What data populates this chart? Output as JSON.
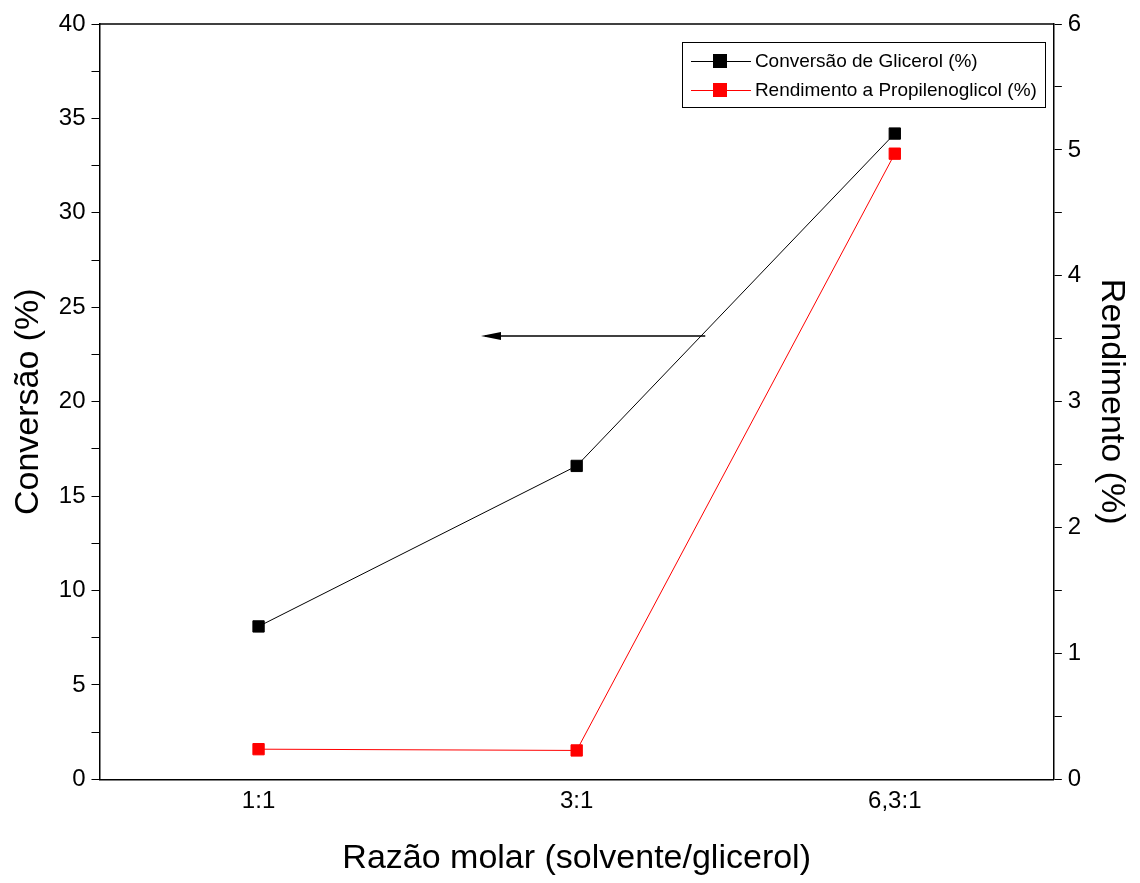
{
  "chart_data": {
    "type": "line",
    "xlabel": "Razão molar (solvente/glicerol)",
    "ylabel": "Conversão (%)",
    "y2label": "Rendimento (%)",
    "categories": [
      "1:1",
      "3:1",
      "6,3:1"
    ],
    "series": [
      {
        "name": "Conversão de Glicerol (%)",
        "color": "#000000",
        "values": [
          8.1,
          16.6,
          34.2
        ]
      },
      {
        "name": "Rendimento a Propilenoglicol (%)",
        "color": "#ff0000",
        "axis": "y2",
        "values": [
          0.24,
          0.23,
          4.97
        ]
      }
    ],
    "ylim": [
      0,
      40
    ],
    "yticks": [
      0,
      {
        "value": 2.5,
        "label": null
      },
      5,
      {
        "value": 7.5,
        "label": null
      },
      10,
      {
        "value": 12.5,
        "label": null
      },
      15,
      {
        "value": 17.5,
        "label": null
      },
      20,
      {
        "value": 22.5,
        "label": null
      },
      25,
      {
        "value": 27.5,
        "label": null
      },
      30,
      {
        "value": 32.5,
        "label": null
      },
      35,
      {
        "value": 37.5,
        "label": null
      },
      40
    ],
    "y2lim": [
      0,
      6
    ],
    "y2ticks": [
      0,
      {
        "value": 0.5,
        "label": null
      },
      1,
      {
        "value": 1.5,
        "label": null
      },
      2,
      {
        "value": 2.5,
        "label": null
      },
      3,
      {
        "value": 3.5,
        "label": null
      },
      4,
      {
        "value": 4.5,
        "label": null
      },
      5,
      {
        "value": 5.5,
        "label": null
      },
      6
    ],
    "grid": false,
    "legend": "top right",
    "marker": "square",
    "line_style": "solid"
  }
}
